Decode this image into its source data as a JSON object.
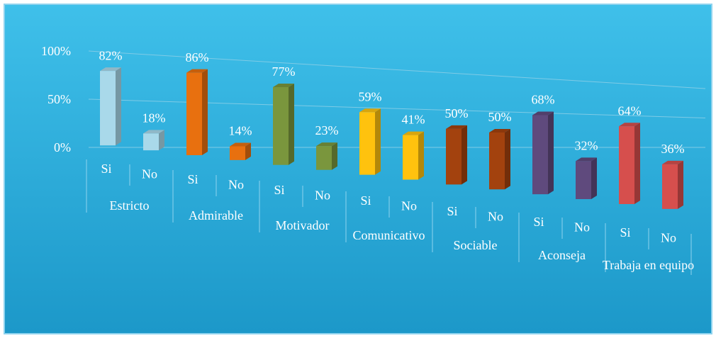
{
  "chart_data": {
    "type": "bar3d",
    "ylim": [
      0,
      100
    ],
    "yticks": [
      {
        "value": 0,
        "label": "0%"
      },
      {
        "value": 50,
        "label": "50%"
      },
      {
        "value": 100,
        "label": "100%"
      }
    ],
    "grid": true,
    "groups": [
      {
        "name": "Estricto",
        "color": "#a9d9ea",
        "categories": [
          "Si",
          "No"
        ],
        "values": [
          82,
          18
        ],
        "value_labels": [
          "82%",
          "18%"
        ]
      },
      {
        "name": "Admirable",
        "color": "#e8700f",
        "categories": [
          "Si",
          "No"
        ],
        "values": [
          86,
          14
        ],
        "value_labels": [
          "86%",
          "14%"
        ]
      },
      {
        "name": "Motivador",
        "color": "#7a963d",
        "categories": [
          "Si",
          "No"
        ],
        "values": [
          77,
          23
        ],
        "value_labels": [
          "77%",
          "23%"
        ]
      },
      {
        "name": "Comunicativo",
        "color": "#ffc20e",
        "categories": [
          "Si",
          "No"
        ],
        "values": [
          59,
          41
        ],
        "value_labels": [
          "59%",
          "41%"
        ]
      },
      {
        "name": "Sociable",
        "color": "#a3420e",
        "categories": [
          "Si",
          "No"
        ],
        "values": [
          50,
          50
        ],
        "value_labels": [
          "50%",
          "50%"
        ]
      },
      {
        "name": "Aconseja",
        "color": "#5f4a7d",
        "categories": [
          "Si",
          "No"
        ],
        "values": [
          68,
          32
        ],
        "value_labels": [
          "68%",
          "32%"
        ]
      },
      {
        "name": "Trabaja en equipo",
        "color": "#d64f4d",
        "categories": [
          "Si",
          "No"
        ],
        "values": [
          64,
          36
        ],
        "value_labels": [
          "64%",
          "36%"
        ]
      }
    ]
  }
}
